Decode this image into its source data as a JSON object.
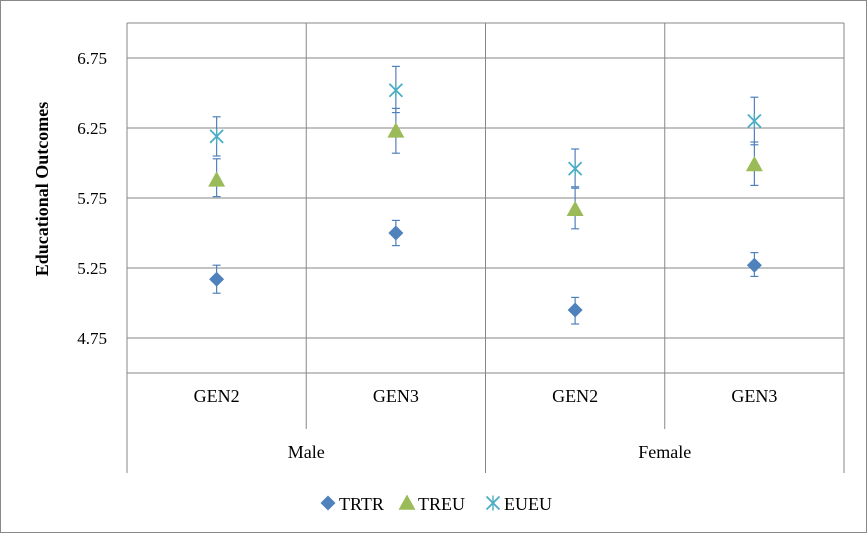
{
  "chart_data": {
    "type": "scatter",
    "title": "",
    "ylabel": "Educational Outcomes",
    "xlabel": "",
    "ylim": [
      4.5,
      7.0
    ],
    "y_ticks": [
      "4.75",
      "5.25",
      "5.75",
      "6.25",
      "6.75"
    ],
    "y_tick_values": [
      4.75,
      5.25,
      5.75,
      6.25,
      6.75
    ],
    "categories": [
      "GEN2",
      "GEN3",
      "GEN2",
      "GEN3"
    ],
    "groups": [
      {
        "label": "Male",
        "categories": [
          "GEN2",
          "GEN3"
        ]
      },
      {
        "label": "Female",
        "categories": [
          "GEN2",
          "GEN3"
        ]
      }
    ],
    "grid": true,
    "legend_position": "bottom",
    "series": [
      {
        "name": "TRTR",
        "marker": "diamond",
        "color": "#4f81bd",
        "values": [
          5.17,
          5.5,
          4.95,
          5.27
        ],
        "error_low": [
          5.07,
          5.41,
          4.85,
          5.19
        ],
        "error_high": [
          5.27,
          5.59,
          5.04,
          5.36
        ]
      },
      {
        "name": "TREU",
        "marker": "triangle",
        "color": "#9bbb59",
        "values": [
          5.88,
          6.23,
          5.67,
          5.99
        ],
        "error_low": [
          5.76,
          6.07,
          5.53,
          5.84
        ],
        "error_high": [
          6.03,
          6.39,
          5.82,
          6.15
        ]
      },
      {
        "name": "EUEU",
        "marker": "x",
        "color": "#4bacc6",
        "values": [
          6.19,
          6.52,
          5.96,
          6.3
        ],
        "error_low": [
          6.05,
          6.36,
          5.83,
          6.13
        ],
        "error_high": [
          6.33,
          6.69,
          6.1,
          6.47
        ]
      }
    ]
  }
}
